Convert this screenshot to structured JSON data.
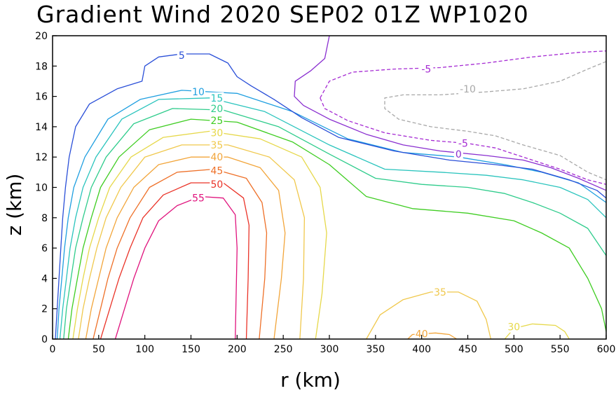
{
  "chart_data": {
    "type": "contour",
    "title": "Gradient Wind 2020 SEP02 01Z  WP1020",
    "xlabel": "r (km)",
    "ylabel": "z (km)",
    "xlim": [
      0,
      600
    ],
    "ylim": [
      0,
      20
    ],
    "x_ticks": [
      "0",
      "50",
      "100",
      "150",
      "200",
      "250",
      "300",
      "350",
      "400",
      "450",
      "500",
      "550",
      "600"
    ],
    "y_ticks": [
      "0",
      "2",
      "4",
      "6",
      "8",
      "10",
      "12",
      "14",
      "16",
      "18",
      "20"
    ],
    "contours": [
      {
        "level": 55,
        "color": "#e0137d",
        "dashed": false,
        "label": "55",
        "label_at": [
          158,
          9.3
        ],
        "points": [
          [
            68,
            0
          ],
          [
            78,
            2
          ],
          [
            88,
            4
          ],
          [
            100,
            6
          ],
          [
            115,
            7.8
          ],
          [
            135,
            8.8
          ],
          [
            160,
            9.4
          ],
          [
            185,
            9.3
          ],
          [
            198,
            8.2
          ],
          [
            200,
            6
          ],
          [
            199,
            3
          ],
          [
            198,
            0
          ]
        ]
      },
      {
        "level": 50,
        "color": "#ea3328",
        "dashed": false,
        "label": "50",
        "label_at": [
          178,
          10.2
        ],
        "points": [
          [
            52,
            0
          ],
          [
            62,
            2
          ],
          [
            72,
            4
          ],
          [
            84,
            6
          ],
          [
            98,
            8
          ],
          [
            120,
            9.5
          ],
          [
            150,
            10.3
          ],
          [
            185,
            10.3
          ],
          [
            207,
            9.3
          ],
          [
            213,
            7.5
          ],
          [
            212,
            4
          ],
          [
            210,
            0
          ]
        ]
      },
      {
        "level": 45,
        "color": "#ee7028",
        "dashed": false,
        "label": "45",
        "label_at": [
          178,
          11.1
        ],
        "points": [
          [
            44,
            0
          ],
          [
            52,
            2
          ],
          [
            60,
            4
          ],
          [
            70,
            6
          ],
          [
            84,
            8
          ],
          [
            105,
            10
          ],
          [
            135,
            11
          ],
          [
            175,
            11.2
          ],
          [
            210,
            10.6
          ],
          [
            227,
            9
          ],
          [
            232,
            7
          ],
          [
            230,
            4
          ],
          [
            224,
            0
          ]
        ]
      },
      {
        "level": 40,
        "color": "#f2a53a",
        "dashed": false,
        "label": "40",
        "label_at": [
          178,
          12
        ],
        "points": [
          [
            36,
            0
          ],
          [
            42,
            2
          ],
          [
            50,
            4
          ],
          [
            58,
            6
          ],
          [
            70,
            8
          ],
          [
            88,
            10
          ],
          [
            115,
            11.5
          ],
          [
            150,
            12
          ],
          [
            190,
            12
          ],
          [
            225,
            11.3
          ],
          [
            245,
            9.8
          ],
          [
            252,
            7
          ],
          [
            248,
            4
          ],
          [
            240,
            0
          ]
        ]
      },
      {
        "level": 35,
        "color": "#f0c84c",
        "dashed": false,
        "label": "35",
        "label_at": [
          178,
          12.8
        ],
        "points": [
          [
            28,
            0
          ],
          [
            33,
            2
          ],
          [
            40,
            4
          ],
          [
            48,
            6
          ],
          [
            58,
            8
          ],
          [
            74,
            10
          ],
          [
            100,
            12
          ],
          [
            140,
            12.8
          ],
          [
            190,
            12.8
          ],
          [
            235,
            12
          ],
          [
            262,
            10.5
          ],
          [
            273,
            8
          ],
          [
            272,
            4
          ],
          [
            268,
            0
          ]
        ]
      },
      {
        "level": 30,
        "color": "#e6d84a",
        "dashed": false,
        "label": "30",
        "label_at": [
          178,
          13.6
        ],
        "points": [
          [
            22,
            0
          ],
          [
            27,
            2
          ],
          [
            33,
            4
          ],
          [
            40,
            6
          ],
          [
            50,
            8
          ],
          [
            62,
            10
          ],
          [
            85,
            12
          ],
          [
            120,
            13.3
          ],
          [
            170,
            13.7
          ],
          [
            225,
            13.2
          ],
          [
            270,
            12
          ],
          [
            290,
            10
          ],
          [
            297,
            7
          ],
          [
            292,
            3
          ],
          [
            285,
            0
          ]
        ]
      },
      {
        "level": 25,
        "color": "#3fcd22",
        "dashed": false,
        "label": "25",
        "label_at": [
          178,
          14.4
        ],
        "points": [
          [
            17,
            0
          ],
          [
            21,
            2
          ],
          [
            27,
            4
          ],
          [
            33,
            6
          ],
          [
            42,
            8
          ],
          [
            52,
            10
          ],
          [
            72,
            12
          ],
          [
            105,
            13.8
          ],
          [
            150,
            14.5
          ],
          [
            200,
            14.3
          ],
          [
            260,
            13
          ],
          [
            300,
            11.5
          ],
          [
            340,
            9.4
          ],
          [
            390,
            8.6
          ],
          [
            450,
            8.3
          ],
          [
            500,
            7.8
          ],
          [
            530,
            7
          ],
          [
            560,
            6
          ],
          [
            580,
            4
          ],
          [
            595,
            2
          ],
          [
            600,
            0.5
          ]
        ]
      },
      {
        "level": 20,
        "color": "#2fcc8c",
        "dashed": false,
        "label": "20",
        "label_at": [
          178,
          15.2
        ],
        "points": [
          [
            12,
            0
          ],
          [
            15,
            2
          ],
          [
            20,
            4
          ],
          [
            25,
            6
          ],
          [
            33,
            8
          ],
          [
            42,
            10
          ],
          [
            58,
            12
          ],
          [
            88,
            14.2
          ],
          [
            130,
            15.2
          ],
          [
            185,
            15.1
          ],
          [
            245,
            14
          ],
          [
            300,
            12.2
          ],
          [
            350,
            10.6
          ],
          [
            400,
            10.2
          ],
          [
            450,
            10
          ],
          [
            490,
            9.6
          ],
          [
            520,
            9
          ],
          [
            550,
            8.3
          ],
          [
            580,
            7.3
          ],
          [
            600,
            5.5
          ]
        ]
      },
      {
        "level": 15,
        "color": "#2ac4bd",
        "dashed": false,
        "label": "15",
        "label_at": [
          178,
          15.9
        ],
        "points": [
          [
            8,
            0
          ],
          [
            11,
            2
          ],
          [
            15,
            4
          ],
          [
            19,
            6
          ],
          [
            25,
            8
          ],
          [
            33,
            10
          ],
          [
            47,
            12
          ],
          [
            75,
            14.5
          ],
          [
            115,
            15.8
          ],
          [
            170,
            15.9
          ],
          [
            230,
            15
          ],
          [
            300,
            12.8
          ],
          [
            360,
            11.2
          ],
          [
            420,
            11
          ],
          [
            470,
            10.8
          ],
          [
            510,
            10.5
          ],
          [
            550,
            10
          ],
          [
            580,
            9.2
          ],
          [
            600,
            8
          ]
        ]
      },
      {
        "level": 10,
        "color": "#1f9fe0",
        "dashed": false,
        "label": "10",
        "label_at": [
          158,
          16.3
        ],
        "points": [
          [
            5,
            0
          ],
          [
            7,
            2
          ],
          [
            10,
            4
          ],
          [
            13,
            6
          ],
          [
            17,
            8
          ],
          [
            23,
            10
          ],
          [
            35,
            12
          ],
          [
            60,
            14.5
          ],
          [
            95,
            15.8
          ],
          [
            140,
            16.4
          ],
          [
            200,
            16.2
          ],
          [
            260,
            15
          ],
          [
            320,
            13.2
          ],
          [
            380,
            12.3
          ],
          [
            440,
            12
          ],
          [
            490,
            11.5
          ],
          [
            530,
            11
          ],
          [
            570,
            10.3
          ],
          [
            600,
            9
          ]
        ]
      },
      {
        "level": 5,
        "color": "#2a4fd8",
        "dashed": false,
        "label": "5",
        "label_at": [
          140,
          18.7
        ],
        "points": [
          [
            3,
            0
          ],
          [
            5,
            2
          ],
          [
            7,
            4
          ],
          [
            9,
            6
          ],
          [
            11,
            8
          ],
          [
            14,
            10
          ],
          [
            18,
            12
          ],
          [
            25,
            14
          ],
          [
            40,
            15.5
          ],
          [
            70,
            16.5
          ],
          [
            97,
            17
          ],
          [
            100,
            18
          ],
          [
            115,
            18.6
          ],
          [
            140,
            18.8
          ],
          [
            170,
            18.8
          ],
          [
            190,
            18.2
          ],
          [
            200,
            17.3
          ],
          [
            215,
            16.7
          ],
          [
            240,
            15.8
          ],
          [
            270,
            14.6
          ],
          [
            310,
            13.3
          ],
          [
            370,
            12.4
          ],
          [
            430,
            11.8
          ],
          [
            480,
            11.5
          ],
          [
            520,
            11.2
          ],
          [
            560,
            10.5
          ],
          [
            590,
            9.8
          ],
          [
            600,
            9.3
          ]
        ]
      },
      {
        "level": 0,
        "color": "#8a2fd0",
        "dashed": false,
        "label": "0",
        "label_at": [
          440,
          12.2
        ],
        "points": [
          [
            300,
            20
          ],
          [
            295,
            18.5
          ],
          [
            280,
            17.7
          ],
          [
            263,
            17
          ],
          [
            262,
            16
          ],
          [
            272,
            15.4
          ],
          [
            300,
            14.5
          ],
          [
            340,
            13.5
          ],
          [
            380,
            12.8
          ],
          [
            420,
            12.4
          ],
          [
            470,
            12.1
          ],
          [
            510,
            11.8
          ],
          [
            540,
            11.3
          ],
          [
            570,
            10.6
          ],
          [
            600,
            9.8
          ]
        ]
      },
      {
        "level": -5,
        "color": "#a52ad3",
        "dashed": true,
        "label": "-5",
        "label_at": [
          405,
          17.8
        ],
        "points": [
          [
            290,
            15.9
          ],
          [
            300,
            17
          ],
          [
            325,
            17.6
          ],
          [
            370,
            17.8
          ],
          [
            420,
            17.9
          ],
          [
            470,
            18.2
          ],
          [
            520,
            18.6
          ],
          [
            570,
            18.9
          ],
          [
            600,
            19
          ]
        ]
      },
      {
        "level": -5,
        "color": "#a52ad3",
        "dashed": true,
        "label": "-5",
        "label_at": [
          445,
          12.9
        ],
        "points": [
          [
            290,
            15.9
          ],
          [
            295,
            15.2
          ],
          [
            320,
            14.4
          ],
          [
            360,
            13.6
          ],
          [
            410,
            13.1
          ],
          [
            450,
            12.9
          ],
          [
            480,
            12.6
          ],
          [
            510,
            12
          ],
          [
            550,
            11.2
          ],
          [
            580,
            10.5
          ],
          [
            600,
            10.2
          ]
        ]
      },
      {
        "level": -10,
        "color": "#a8a8a8",
        "dashed": true,
        "label": "-10",
        "label_at": [
          450,
          16.5
        ],
        "points": [
          [
            600,
            18.3
          ],
          [
            580,
            17.8
          ],
          [
            550,
            17
          ],
          [
            510,
            16.5
          ],
          [
            470,
            16.3
          ],
          [
            420,
            16.1
          ],
          [
            380,
            16.1
          ],
          [
            360,
            15.9
          ],
          [
            360,
            15.2
          ],
          [
            375,
            14.5
          ],
          [
            410,
            14
          ],
          [
            450,
            13.7
          ],
          [
            480,
            13.4
          ],
          [
            510,
            12.8
          ],
          [
            550,
            12.1
          ],
          [
            580,
            11
          ],
          [
            600,
            10.5
          ]
        ]
      },
      {
        "level": 35,
        "color": "#f0c84c",
        "dashed": false,
        "label": "35",
        "label_at": [
          420,
          3.1
        ],
        "points": [
          [
            340,
            0
          ],
          [
            355,
            1.6
          ],
          [
            380,
            2.6
          ],
          [
            410,
            3.1
          ],
          [
            440,
            3.1
          ],
          [
            460,
            2.5
          ],
          [
            470,
            1.3
          ],
          [
            475,
            0
          ]
        ]
      },
      {
        "level": 40,
        "color": "#f2a53a",
        "dashed": false,
        "label": "40",
        "label_at": [
          400,
          0.35
        ],
        "points": [
          [
            385,
            0
          ],
          [
            390,
            0.3
          ],
          [
            415,
            0.4
          ],
          [
            430,
            0.3
          ],
          [
            438,
            0
          ]
        ]
      },
      {
        "level": 30,
        "color": "#e6d84a",
        "dashed": false,
        "label": "30",
        "label_at": [
          500,
          0.8
        ],
        "points": [
          [
            490,
            0
          ],
          [
            500,
            0.7
          ],
          [
            520,
            1
          ],
          [
            545,
            0.9
          ],
          [
            555,
            0.5
          ],
          [
            560,
            0
          ]
        ]
      }
    ]
  }
}
